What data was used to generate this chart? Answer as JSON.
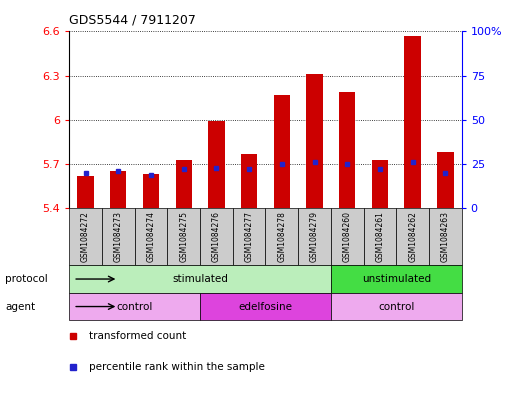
{
  "title": "GDS5544 / 7911207",
  "samples": [
    "GSM1084272",
    "GSM1084273",
    "GSM1084274",
    "GSM1084275",
    "GSM1084276",
    "GSM1084277",
    "GSM1084278",
    "GSM1084279",
    "GSM1084260",
    "GSM1084261",
    "GSM1084262",
    "GSM1084263"
  ],
  "red_values": [
    5.62,
    5.65,
    5.63,
    5.73,
    5.99,
    5.77,
    6.17,
    6.31,
    6.19,
    5.73,
    6.57,
    5.78
  ],
  "blue_values_pct": [
    20,
    21,
    19,
    22,
    23,
    22,
    25,
    26,
    25,
    22,
    26,
    20
  ],
  "ymin": 5.4,
  "ymax": 6.6,
  "yticks": [
    5.4,
    5.7,
    6.0,
    6.3,
    6.6
  ],
  "ytick_labels": [
    "5.4",
    "5.7",
    "6",
    "6.3",
    "6.6"
  ],
  "right_yticks": [
    0,
    25,
    50,
    75,
    100
  ],
  "right_ytick_labels": [
    "0",
    "25",
    "50",
    "75",
    "100%"
  ],
  "bar_color": "#cc0000",
  "blue_color": "#2222cc",
  "protocol_groups": [
    {
      "label": "stimulated",
      "start": 0,
      "end": 7,
      "color": "#bbeebb"
    },
    {
      "label": "unstimulated",
      "start": 8,
      "end": 11,
      "color": "#44dd44"
    }
  ],
  "agent_groups": [
    {
      "label": "control",
      "start": 0,
      "end": 3,
      "color": "#eeaaee"
    },
    {
      "label": "edelfosine",
      "start": 4,
      "end": 7,
      "color": "#dd44dd"
    },
    {
      "label": "control",
      "start": 8,
      "end": 11,
      "color": "#eeaaee"
    }
  ],
  "legend_red_label": "transformed count",
  "legend_blue_label": "percentile rank within the sample",
  "protocol_label": "protocol",
  "agent_label": "agent",
  "bar_width": 0.5,
  "background_color": "#ffffff",
  "tick_bg_color": "#cccccc",
  "n_samples": 12
}
